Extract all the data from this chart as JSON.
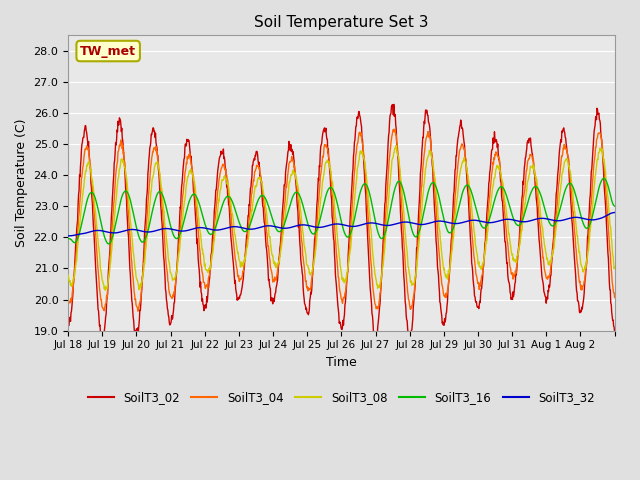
{
  "title": "Soil Temperature Set 3",
  "xlabel": "Time",
  "ylabel": "Soil Temperature (C)",
  "ylim": [
    19.0,
    28.5
  ],
  "yticks": [
    19.0,
    20.0,
    21.0,
    22.0,
    23.0,
    24.0,
    25.0,
    26.0,
    27.0,
    28.0
  ],
  "annotation_label": "TW_met",
  "annotation_color": "#aa0000",
  "annotation_bg": "#ffffcc",
  "annotation_border": "#aaaa00",
  "series_colors": {
    "SoilT3_02": "#cc0000",
    "SoilT3_04": "#ff6600",
    "SoilT3_08": "#cccc00",
    "SoilT3_16": "#00bb00",
    "SoilT3_32": "#0000cc"
  },
  "background_color": "#e0e0e0",
  "plot_bg": "#e8e8e8",
  "grid_color": "#ffffff",
  "n_days": 16,
  "xtick_labels": [
    "Jul 18",
    "Jul 19",
    "Jul 20",
    "Jul 21",
    "Jul 22",
    "Jul 23",
    "Jul 24",
    "Jul 25",
    "Jul 26",
    "Jul 27",
    "Jul 28",
    "Jul 29",
    "Jul 30",
    "Jul 31",
    "Aug 1",
    "Aug 2"
  ],
  "legend_entries": [
    "SoilT3_02",
    "SoilT3_04",
    "SoilT3_08",
    "SoilT3_16",
    "SoilT3_32"
  ]
}
